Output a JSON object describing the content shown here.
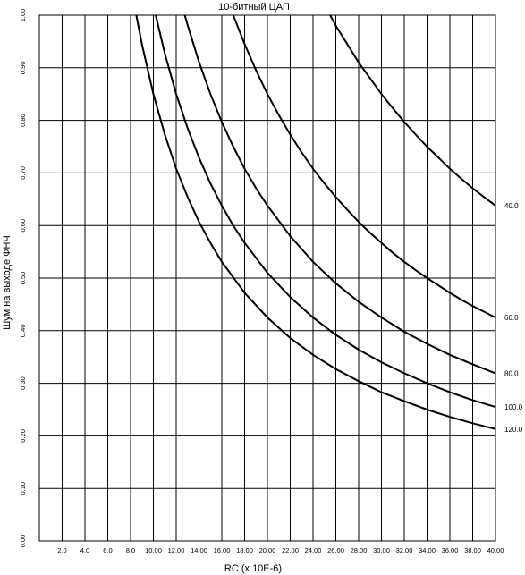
{
  "chart_data": {
    "type": "line",
    "title": "10-битный ЦАП",
    "xlabel": "RC (x 10E-6)",
    "ylabel": "Шум на выходе ФНЧ",
    "xlim": [
      0,
      40
    ],
    "ylim": [
      0,
      1
    ],
    "grid": true,
    "x_ticks": [
      "2.0",
      "4.0",
      "6.0",
      "8.0",
      "10.00",
      "12.00",
      "14.00",
      "16.00",
      "18.00",
      "20.00",
      "22.00",
      "24.00",
      "26.00",
      "28.00",
      "30.00",
      "32.00",
      "34.00",
      "36.00",
      "38.00",
      "40.00"
    ],
    "y_ticks": [
      "0.00",
      "0.10",
      "0.20",
      "0.30",
      "0.40",
      "0.50",
      "0.60",
      "0.70",
      "0.80",
      "0.90",
      "1.00"
    ],
    "series": [
      {
        "name": "40.0",
        "x": [
          25.5,
          26,
          27,
          28,
          29,
          30,
          31,
          32,
          33,
          34,
          35,
          36,
          37,
          38,
          39,
          40
        ],
        "y": [
          1.0,
          0.98,
          0.945,
          0.91,
          0.88,
          0.85,
          0.823,
          0.797,
          0.773,
          0.75,
          0.729,
          0.708,
          0.689,
          0.671,
          0.654,
          0.638
        ]
      },
      {
        "name": "60.0",
        "x": [
          17,
          18,
          19,
          20,
          21,
          22,
          23,
          24,
          25,
          26,
          27,
          28,
          29,
          30,
          31,
          32,
          33,
          34,
          35,
          36,
          37,
          38,
          39,
          40
        ],
        "y": [
          1.0,
          0.945,
          0.895,
          0.85,
          0.81,
          0.773,
          0.739,
          0.708,
          0.68,
          0.654,
          0.63,
          0.607,
          0.586,
          0.567,
          0.548,
          0.531,
          0.515,
          0.5,
          0.486,
          0.472,
          0.459,
          0.447,
          0.436,
          0.425
        ]
      },
      {
        "name": "80.0",
        "x": [
          12.75,
          13,
          14,
          15,
          16,
          17,
          18,
          19,
          20,
          22,
          24,
          26,
          28,
          30,
          32,
          34,
          36,
          38,
          40
        ],
        "y": [
          1.0,
          0.981,
          0.911,
          0.85,
          0.797,
          0.75,
          0.708,
          0.671,
          0.638,
          0.58,
          0.531,
          0.49,
          0.455,
          0.425,
          0.398,
          0.375,
          0.354,
          0.336,
          0.319
        ]
      },
      {
        "name": "100.0",
        "x": [
          10.2,
          11,
          12,
          13,
          14,
          15,
          16,
          17,
          18,
          20,
          22,
          24,
          26,
          28,
          30,
          32,
          34,
          36,
          38,
          40
        ],
        "y": [
          1.0,
          0.927,
          0.85,
          0.785,
          0.729,
          0.68,
          0.638,
          0.6,
          0.567,
          0.51,
          0.464,
          0.425,
          0.392,
          0.364,
          0.34,
          0.319,
          0.3,
          0.283,
          0.268,
          0.255
        ]
      },
      {
        "name": "120.0",
        "x": [
          8.5,
          9,
          10,
          11,
          12,
          13,
          14,
          15,
          16,
          18,
          20,
          22,
          24,
          26,
          28,
          30,
          32,
          34,
          36,
          38,
          40
        ],
        "y": [
          1.0,
          0.944,
          0.85,
          0.773,
          0.708,
          0.654,
          0.607,
          0.567,
          0.531,
          0.472,
          0.425,
          0.386,
          0.354,
          0.327,
          0.304,
          0.283,
          0.266,
          0.25,
          0.236,
          0.224,
          0.213
        ]
      }
    ]
  }
}
